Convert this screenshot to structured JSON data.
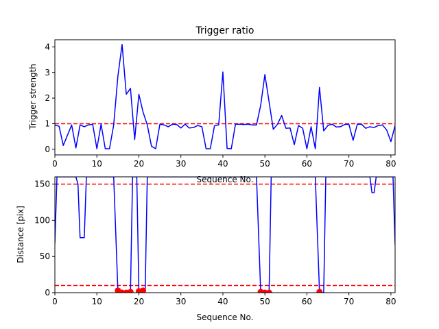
{
  "chart_data": [
    {
      "type": "line",
      "title": "Trigger ratio",
      "xlabel": "Sequence No.",
      "ylabel": "Trigger strength",
      "xlim": [
        0,
        81
      ],
      "ylim": [
        -0.22,
        4.28
      ],
      "xticks": [
        0,
        10,
        20,
        30,
        40,
        50,
        60,
        70,
        80
      ],
      "yticks": [
        0,
        1,
        2,
        3,
        4
      ],
      "grid": false,
      "series": [
        {
          "color": "#0000ff",
          "x": [
            0,
            1,
            2,
            3,
            4,
            5,
            6,
            7,
            8,
            9,
            10,
            11,
            12,
            13,
            14,
            15,
            16,
            17,
            18,
            19,
            20,
            21,
            22,
            23,
            24,
            25,
            26,
            27,
            28,
            29,
            30,
            31,
            32,
            33,
            34,
            35,
            36,
            37,
            38,
            39,
            40,
            41,
            42,
            43,
            44,
            45,
            46,
            47,
            48,
            49,
            50,
            51,
            52,
            53,
            54,
            55,
            56,
            57,
            58,
            59,
            60,
            61,
            62,
            63,
            64,
            65,
            66,
            67,
            68,
            69,
            70,
            71,
            72,
            73,
            74,
            75,
            76,
            77,
            78,
            79,
            80,
            81
          ],
          "values": [
            0.95,
            0.9,
            0.15,
            0.55,
            0.95,
            0.05,
            0.95,
            0.88,
            0.95,
            0.98,
            0.02,
            0.98,
            0.02,
            0.02,
            0.95,
            2.85,
            4.1,
            2.15,
            2.38,
            0.38,
            2.15,
            1.45,
            0.95,
            0.12,
            0.02,
            0.98,
            0.95,
            0.88,
            0.98,
            0.97,
            0.83,
            0.98,
            0.83,
            0.85,
            0.93,
            0.88,
            0.02,
            0.02,
            0.92,
            0.95,
            3.02,
            0.03,
            0.02,
            0.98,
            0.98,
            0.97,
            0.98,
            0.95,
            0.95,
            1.72,
            2.92,
            1.85,
            0.78,
            0.98,
            1.32,
            0.82,
            0.83,
            0.18,
            0.93,
            0.82,
            0.02,
            0.88,
            0.02,
            2.42,
            0.72,
            0.93,
            0.98,
            0.87,
            0.88,
            0.97,
            0.98,
            0.35,
            0.98,
            0.98,
            0.82,
            0.88,
            0.85,
            0.93,
            0.95,
            0.75,
            0.3,
            0.93
          ]
        }
      ],
      "reference_lines": [
        {
          "axis": "y",
          "value": 1.0,
          "color": "#ff0000",
          "style": "dashed"
        }
      ]
    },
    {
      "type": "line",
      "title": "",
      "xlabel": "Sequence No.",
      "ylabel": "Distance [pix]",
      "xlim": [
        0,
        81
      ],
      "ylim": [
        0,
        160
      ],
      "xticks": [
        0,
        10,
        20,
        30,
        40,
        50,
        60,
        70,
        80
      ],
      "yticks": [
        0,
        50,
        100,
        150
      ],
      "grid": false,
      "series": [
        {
          "color": "#0000ff",
          "x": [
            0,
            0.5,
            5,
            5.5,
            6,
            7,
            7.5,
            14,
            15,
            16,
            17,
            18,
            18.5,
            19.5,
            20,
            20.5,
            21,
            21.5,
            22,
            48,
            49,
            50,
            51,
            51.5,
            62,
            63,
            64,
            64.5,
            75,
            75.5,
            76,
            76.5,
            80.5,
            81
          ],
          "values": [
            68,
            160,
            160,
            150,
            76,
            76,
            160,
            160,
            3,
            0,
            0,
            1,
            160,
            160,
            2,
            2,
            3,
            2,
            160,
            160,
            1,
            0,
            0,
            160,
            160,
            1,
            0,
            160,
            160,
            138,
            138,
            160,
            160,
            66
          ],
          "markers": {
            "color": "#ff0000",
            "x": [
              15,
              16,
              17,
              18,
              20,
              21,
              49,
              50,
              51,
              63
            ],
            "values": [
              3,
              0,
              0,
              1,
              2,
              3,
              1,
              0,
              0,
              1
            ]
          }
        }
      ],
      "reference_lines": [
        {
          "axis": "y",
          "value": 150,
          "color": "#ff0000",
          "style": "dashed"
        },
        {
          "axis": "y",
          "value": 10,
          "color": "#ff0000",
          "style": "dashed"
        }
      ]
    }
  ]
}
